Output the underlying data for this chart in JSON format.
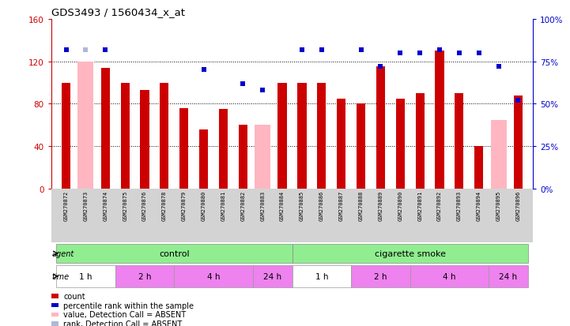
{
  "title": "GDS3493 / 1560434_x_at",
  "samples": [
    "GSM270872",
    "GSM270873",
    "GSM270874",
    "GSM270875",
    "GSM270876",
    "GSM270878",
    "GSM270879",
    "GSM270880",
    "GSM270881",
    "GSM270882",
    "GSM270883",
    "GSM270884",
    "GSM270885",
    "GSM270886",
    "GSM270887",
    "GSM270888",
    "GSM270889",
    "GSM270890",
    "GSM270891",
    "GSM270892",
    "GSM270893",
    "GSM270894",
    "GSM270895",
    "GSM270896"
  ],
  "count": [
    100,
    0,
    114,
    100,
    93,
    100,
    76,
    56,
    75,
    60,
    0,
    100,
    100,
    100,
    85,
    80,
    115,
    85,
    90,
    130,
    90,
    40,
    0,
    88
  ],
  "percentile_rank": [
    82,
    0,
    82,
    0,
    0,
    0,
    0,
    70,
    0,
    62,
    58,
    0,
    82,
    82,
    0,
    82,
    72,
    80,
    80,
    82,
    80,
    80,
    72,
    52
  ],
  "absent_value": [
    0,
    120,
    0,
    0,
    0,
    0,
    0,
    0,
    0,
    0,
    60,
    0,
    0,
    0,
    0,
    0,
    0,
    0,
    0,
    0,
    0,
    0,
    65,
    0
  ],
  "absent_rank": [
    0,
    82,
    0,
    0,
    0,
    0,
    0,
    0,
    0,
    0,
    0,
    0,
    0,
    0,
    0,
    0,
    0,
    0,
    0,
    0,
    0,
    0,
    72,
    0
  ],
  "count_color": "#cc0000",
  "percentile_color": "#0000cc",
  "absent_value_color": "#ffb6c1",
  "absent_rank_color": "#b0b8d8",
  "yticks_left": [
    0,
    40,
    80,
    120,
    160
  ],
  "ytick_labels_left": [
    "0",
    "40",
    "80",
    "120",
    "160"
  ],
  "yticks_right": [
    0,
    25,
    50,
    75,
    100
  ],
  "ytick_labels_right": [
    "0%",
    "25%",
    "50%",
    "75%",
    "100%"
  ],
  "grid_lines": [
    40,
    80,
    120
  ],
  "time_blocks": [
    {
      "start": 0,
      "end": 2,
      "label": "1 h",
      "color": "#ffffff"
    },
    {
      "start": 3,
      "end": 5,
      "label": "2 h",
      "color": "#ee82ee"
    },
    {
      "start": 6,
      "end": 9,
      "label": "4 h",
      "color": "#ee82ee"
    },
    {
      "start": 10,
      "end": 11,
      "label": "24 h",
      "color": "#ee82ee"
    },
    {
      "start": 12,
      "end": 14,
      "label": "1 h",
      "color": "#ffffff"
    },
    {
      "start": 15,
      "end": 17,
      "label": "2 h",
      "color": "#ee82ee"
    },
    {
      "start": 18,
      "end": 21,
      "label": "4 h",
      "color": "#ee82ee"
    },
    {
      "start": 22,
      "end": 23,
      "label": "24 h",
      "color": "#ee82ee"
    }
  ],
  "agent_blocks": [
    {
      "start": 0,
      "end": 11,
      "label": "control",
      "color": "#90ee90"
    },
    {
      "start": 12,
      "end": 23,
      "label": "cigarette smoke",
      "color": "#90ee90"
    }
  ],
  "legend_items": [
    {
      "label": "count",
      "color": "#cc0000"
    },
    {
      "label": "percentile rank within the sample",
      "color": "#0000cc"
    },
    {
      "label": "value, Detection Call = ABSENT",
      "color": "#ffb6c1"
    },
    {
      "label": "rank, Detection Call = ABSENT",
      "color": "#b0b8d8"
    }
  ]
}
